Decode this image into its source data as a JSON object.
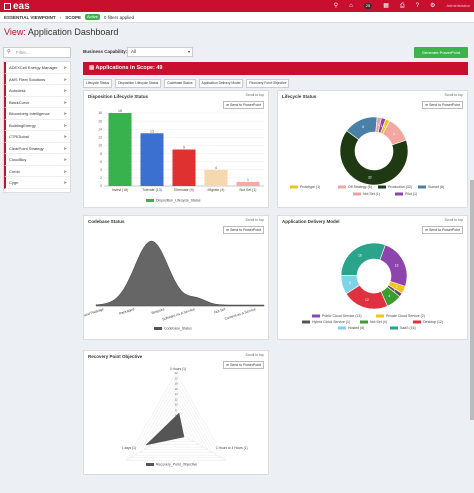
{
  "topbar": {
    "logo": "eas",
    "notif_count": "25",
    "user": "Administrator"
  },
  "subbar": {
    "viewpoint": "ESSENTIAL VIEWPOINT",
    "scope_label": "SCOPE",
    "scope_status": "Active",
    "filters": "0 filters applied"
  },
  "page": {
    "title_prefix": "View:",
    "title": "Application Dashboard"
  },
  "sidebar": {
    "filter_placeholder": "Filter...",
    "items": [
      {
        "label": "ADEXCell Energy Manager"
      },
      {
        "label": "AMS Fleet Solutions"
      },
      {
        "label": "Autodesk"
      },
      {
        "label": "BlackCurve"
      },
      {
        "label": "Bloomberg Intelligence"
      },
      {
        "label": "BuildingEnergy"
      },
      {
        "label": "CTRGlobal"
      },
      {
        "label": "ClearPoint Strategy"
      },
      {
        "label": "CloudBuy"
      },
      {
        "label": "Credo"
      },
      {
        "label": "Cygn"
      }
    ]
  },
  "capability": {
    "label": "Business Capability:",
    "value": "All"
  },
  "generate_button": "Generate PowerPoint",
  "apps_in_scope": "Applications in Scope: 49",
  "tabs": [
    "Lifecycle Status",
    "Disposition Lifecycle Status",
    "Codebase Status",
    "Application Delivery Model",
    "Recovery Point Objective"
  ],
  "common": {
    "scroll_top": "Scroll to top",
    "send_ppt": "Send to PowerPoint"
  },
  "panels": {
    "disposition": {
      "title": "Disposition Lifecycle Status",
      "legend": "Disposition_Lifecycle_Status"
    },
    "lifecycle": {
      "title": "Lifecycle Status"
    },
    "codebase": {
      "title": "Codebase Status",
      "legend": "Codebase_Status"
    },
    "delivery": {
      "title": "Application Delivery Model"
    },
    "recovery": {
      "title": "Recovery Point Objective",
      "legend": "Recovery_Point_Objective"
    }
  },
  "chart_data": [
    {
      "type": "bar",
      "title": "Disposition Lifecycle Status",
      "categories": [
        "Invest (18)",
        "Tolerate (13)",
        "Eliminate (9)",
        "Migrate (4)",
        "Not Set (1)"
      ],
      "values": [
        18,
        13,
        9,
        4,
        1
      ],
      "colors": [
        "#37b24d",
        "#3b6fd0",
        "#e03131",
        "#f5d7b0",
        "#f7a8a8"
      ],
      "ylim": [
        0,
        18
      ],
      "yticks": [
        0,
        2,
        4,
        6,
        8,
        10,
        12,
        14,
        16,
        18
      ],
      "legend": "Disposition_Lifecycle_Status"
    },
    {
      "type": "pie",
      "title": "Lifecycle Status",
      "labels": [
        "Prototype (1)",
        "Off Strategy (6)",
        "Production (32)",
        "Sunset (8)",
        "Not Set (1)",
        "Pilot (1)"
      ],
      "values": [
        1,
        6,
        32,
        8,
        1,
        1
      ],
      "colors": [
        "#f0c419",
        "#f4a6a0",
        "#1f3a12",
        "#4a7fa8",
        "#e8a0a0",
        "#8e44ad"
      ]
    },
    {
      "type": "area",
      "title": "Codebase Status",
      "categories": [
        "Customised Package",
        "Packaged",
        "Bespoke",
        "Software As A Service",
        "Not Set",
        "Content as a Service"
      ],
      "legend": "Codebase_Status"
    },
    {
      "type": "pie",
      "title": "Application Delivery Model",
      "labels": [
        "Public Cloud Service (13)",
        "Private Cloud Service (2)",
        "Hybrid Cloud Service (1)",
        "Not Set (4)",
        "Desktop (12)",
        "Hosted (5)",
        "SaaS (16)"
      ],
      "values": [
        13,
        2,
        1,
        4,
        12,
        5,
        16
      ],
      "colors": [
        "#8e44ad",
        "#f0c419",
        "#555555",
        "#3b9d2f",
        "#e03141",
        "#7fd3e6",
        "#2aa58c"
      ]
    },
    {
      "type": "radar",
      "title": "Recovery Point Objective",
      "axes": [
        "0 Hours (1)",
        "1 days (1)",
        "1 Hours to 4 Hours (1)"
      ],
      "ticks": [
        0,
        2,
        4,
        6,
        8,
        10,
        12,
        14,
        16,
        18,
        20,
        22
      ],
      "legend": "Recovery_Point_Objective"
    }
  ]
}
